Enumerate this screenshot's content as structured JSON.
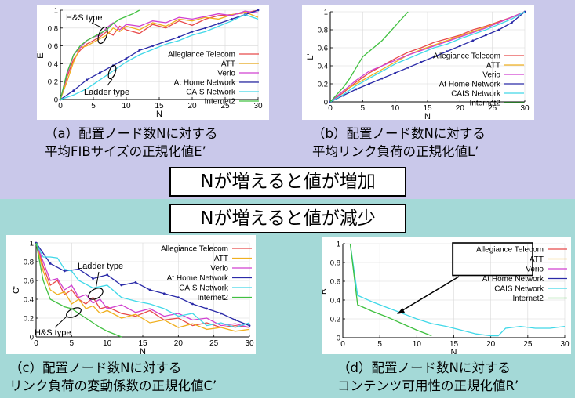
{
  "colors": {
    "background_top": "#c9c8ea",
    "background_bottom": "#a4d9d7",
    "series": {
      "Allegiance Telecom": "#e84a4a",
      "ATT": "#f0b020",
      "Verio": "#d040d0",
      "At Home Network": "#2a2aa8",
      "CAIS Network": "#40d8e8",
      "Internet2": "#40c040"
    }
  },
  "banners": {
    "increase": "Nが増えると値が増加",
    "decrease": "Nが増えると値が減少"
  },
  "captions": {
    "a": [
      "（a）配置ノード数Nに対する",
      "平均FIBサイズの正規化値E’"
    ],
    "b": [
      "（b）配置ノード数Nに対する",
      "平均リンク負荷の正規化値L’"
    ],
    "c": [
      "（c）配置ノード数Nに対する",
      "リンク負荷の変動係数の正規化値C’"
    ],
    "d": [
      "（d）配置ノード数Nに対する",
      "コンテンツ可用性の正規化値R’"
    ]
  },
  "chart_data": [
    {
      "id": "a",
      "type": "line",
      "xlabel": "N",
      "ylabel": "E'",
      "xlim": [
        0,
        30
      ],
      "ylim": [
        0,
        1
      ],
      "xticks": [
        0,
        5,
        10,
        15,
        20,
        25,
        30
      ],
      "yticks": [
        0,
        0.2,
        0.4,
        0.6,
        0.8,
        1
      ],
      "ytick_labels": [
        "0",
        "0.2",
        "0.4",
        "0.6",
        "0.8",
        "1"
      ],
      "legend": [
        "Allegiance Telecom",
        "ATT",
        "Verio",
        "At Home Network",
        "CAIS Network",
        "Internet2"
      ],
      "annotations": [
        "H&S type",
        "Ladder type"
      ],
      "series": [
        {
          "name": "Allegiance Telecom",
          "x": [
            0,
            1,
            2,
            3,
            4,
            5,
            6,
            7,
            8,
            9,
            10,
            12,
            14,
            16,
            18,
            20,
            22,
            24,
            26,
            28,
            30
          ],
          "y": [
            0,
            0.25,
            0.45,
            0.55,
            0.62,
            0.66,
            0.7,
            0.76,
            0.72,
            0.82,
            0.78,
            0.74,
            0.84,
            0.8,
            0.88,
            0.83,
            0.9,
            0.94,
            0.95,
            0.97,
            1
          ]
        },
        {
          "name": "ATT",
          "x": [
            0,
            1,
            2,
            3,
            4,
            5,
            6,
            7,
            8,
            9,
            10,
            12,
            14,
            16,
            18,
            20,
            22,
            24,
            26,
            28,
            30
          ],
          "y": [
            0,
            0.2,
            0.42,
            0.58,
            0.6,
            0.64,
            0.68,
            0.72,
            0.8,
            0.76,
            0.82,
            0.78,
            0.86,
            0.82,
            0.9,
            0.88,
            0.92,
            0.9,
            0.95,
            0.98,
            0.92
          ]
        },
        {
          "name": "Verio",
          "x": [
            0,
            1,
            2,
            3,
            4,
            5,
            6,
            7,
            8,
            9,
            10,
            12,
            14,
            16,
            18,
            20,
            22,
            24,
            26,
            28,
            30
          ],
          "y": [
            0,
            0.28,
            0.5,
            0.58,
            0.66,
            0.7,
            0.72,
            0.8,
            0.86,
            0.78,
            0.84,
            0.82,
            0.88,
            0.86,
            0.92,
            0.9,
            0.93,
            0.96,
            0.94,
            0.99,
            0.97
          ]
        },
        {
          "name": "At Home Network",
          "x": [
            0,
            2,
            4,
            6,
            8,
            10,
            12,
            14,
            16,
            18,
            20,
            22,
            24,
            26,
            28,
            30
          ],
          "y": [
            0,
            0.1,
            0.22,
            0.3,
            0.38,
            0.46,
            0.55,
            0.6,
            0.65,
            0.7,
            0.76,
            0.8,
            0.85,
            0.9,
            0.95,
            1
          ]
        },
        {
          "name": "CAIS Network",
          "x": [
            0,
            2,
            4,
            6,
            8,
            10,
            12,
            14,
            16,
            18,
            20,
            22,
            24,
            26,
            28,
            30
          ],
          "y": [
            0,
            0.05,
            0.12,
            0.22,
            0.32,
            0.42,
            0.5,
            0.56,
            0.62,
            0.66,
            0.72,
            0.76,
            0.82,
            0.88,
            0.95,
            0.9
          ]
        },
        {
          "name": "Internet2",
          "x": [
            0,
            1,
            2,
            3,
            4,
            5,
            6,
            7,
            8,
            9,
            10,
            11,
            12
          ],
          "y": [
            0,
            0.3,
            0.5,
            0.6,
            0.66,
            0.7,
            0.74,
            0.78,
            0.85,
            0.9,
            0.93,
            0.96,
            1
          ]
        }
      ]
    },
    {
      "id": "b",
      "type": "line",
      "xlabel": "N",
      "ylabel": "L'",
      "xlim": [
        0,
        30
      ],
      "ylim": [
        0,
        1
      ],
      "xticks": [
        0,
        5,
        10,
        15,
        20,
        25,
        30
      ],
      "yticks": [
        0,
        0.2,
        0.4,
        0.6,
        0.8,
        1
      ],
      "ytick_labels": [
        "0",
        "0.2",
        "0.4",
        "0.6",
        "0.8",
        "1"
      ],
      "legend": [
        "Allegiance Telecom",
        "ATT",
        "Verio",
        "At Home Network",
        "CAIS Network",
        "Internet2"
      ],
      "series": [
        {
          "name": "Allegiance Telecom",
          "x": [
            0,
            2,
            4,
            6,
            8,
            10,
            12,
            14,
            16,
            18,
            20,
            22,
            24,
            26,
            28,
            30
          ],
          "y": [
            0,
            0.1,
            0.22,
            0.32,
            0.4,
            0.48,
            0.55,
            0.6,
            0.66,
            0.7,
            0.74,
            0.8,
            0.84,
            0.89,
            0.94,
            1
          ]
        },
        {
          "name": "ATT",
          "x": [
            0,
            2,
            4,
            6,
            8,
            10,
            12,
            14,
            16,
            18,
            20,
            22,
            24,
            26,
            28,
            30
          ],
          "y": [
            0,
            0.12,
            0.2,
            0.28,
            0.36,
            0.44,
            0.52,
            0.58,
            0.63,
            0.68,
            0.73,
            0.78,
            0.83,
            0.88,
            0.94,
            1
          ]
        },
        {
          "name": "Verio",
          "x": [
            0,
            2,
            4,
            6,
            8,
            10,
            12,
            14,
            16,
            18,
            20,
            22,
            24,
            26,
            28,
            30
          ],
          "y": [
            0,
            0.12,
            0.24,
            0.34,
            0.4,
            0.46,
            0.52,
            0.57,
            0.62,
            0.67,
            0.72,
            0.77,
            0.82,
            0.88,
            0.94,
            1
          ]
        },
        {
          "name": "At Home Network",
          "x": [
            0,
            2,
            4,
            6,
            8,
            10,
            12,
            14,
            16,
            18,
            20,
            22,
            24,
            26,
            28,
            30
          ],
          "y": [
            0,
            0.07,
            0.14,
            0.2,
            0.26,
            0.32,
            0.38,
            0.44,
            0.5,
            0.56,
            0.62,
            0.68,
            0.74,
            0.8,
            0.88,
            1
          ]
        },
        {
          "name": "CAIS Network",
          "x": [
            0,
            2,
            4,
            6,
            8,
            10,
            12,
            14,
            16,
            18,
            20,
            22,
            24,
            26,
            28,
            30
          ],
          "y": [
            0,
            0.08,
            0.18,
            0.26,
            0.34,
            0.42,
            0.48,
            0.54,
            0.6,
            0.64,
            0.7,
            0.75,
            0.8,
            0.86,
            0.92,
            1
          ]
        },
        {
          "name": "Internet2",
          "x": [
            0,
            1,
            2,
            3,
            4,
            5,
            6,
            7,
            8,
            9,
            10,
            11,
            12
          ],
          "y": [
            0,
            0.08,
            0.16,
            0.26,
            0.38,
            0.5,
            0.56,
            0.62,
            0.68,
            0.76,
            0.84,
            0.92,
            1
          ]
        }
      ]
    },
    {
      "id": "c",
      "type": "line",
      "xlabel": "N",
      "ylabel": "C'",
      "xlim": [
        0,
        30
      ],
      "ylim": [
        0,
        1
      ],
      "xticks": [
        0,
        5,
        10,
        15,
        20,
        25,
        30
      ],
      "yticks": [
        0,
        0.2,
        0.4,
        0.6,
        0.8,
        1
      ],
      "ytick_labels": [
        "0",
        "0.2",
        "0.4",
        "0.6",
        "0.8",
        "1"
      ],
      "legend": [
        "Allegiance Telecom",
        "ATT",
        "Verio",
        "At Home Network",
        "CAIS Network",
        "Internet2"
      ],
      "annotations": [
        "Ladder type",
        "H&S type"
      ],
      "series": [
        {
          "name": "Allegiance Telecom",
          "x": [
            0,
            1,
            2,
            3,
            4,
            5,
            6,
            7,
            8,
            9,
            10,
            12,
            14,
            16,
            18,
            20,
            22,
            24,
            26,
            28,
            30
          ],
          "y": [
            1,
            0.75,
            0.55,
            0.6,
            0.45,
            0.5,
            0.4,
            0.35,
            0.42,
            0.3,
            0.32,
            0.25,
            0.22,
            0.28,
            0.18,
            0.2,
            0.12,
            0.15,
            0.1,
            0.12,
            0.1
          ]
        },
        {
          "name": "ATT",
          "x": [
            0,
            1,
            2,
            3,
            4,
            5,
            6,
            7,
            8,
            9,
            10,
            12,
            14,
            16,
            18,
            20,
            22,
            24,
            26,
            28,
            30
          ],
          "y": [
            1,
            0.7,
            0.5,
            0.45,
            0.48,
            0.35,
            0.4,
            0.3,
            0.33,
            0.25,
            0.28,
            0.2,
            0.24,
            0.15,
            0.18,
            0.1,
            0.14,
            0.08,
            0.1,
            0.06,
            0.08
          ]
        },
        {
          "name": "Verio",
          "x": [
            0,
            1,
            2,
            3,
            4,
            5,
            6,
            7,
            8,
            9,
            10,
            12,
            14,
            16,
            18,
            20,
            22,
            24,
            26,
            28,
            30
          ],
          "y": [
            1,
            0.8,
            0.6,
            0.62,
            0.5,
            0.55,
            0.42,
            0.45,
            0.36,
            0.4,
            0.3,
            0.34,
            0.26,
            0.3,
            0.22,
            0.25,
            0.18,
            0.2,
            0.12,
            0.14,
            0.1
          ]
        },
        {
          "name": "At Home Network",
          "x": [
            0,
            2,
            4,
            6,
            8,
            10,
            12,
            14,
            16,
            18,
            20,
            22,
            24,
            26,
            28,
            30
          ],
          "y": [
            1,
            0.78,
            0.7,
            0.72,
            0.62,
            0.66,
            0.55,
            0.58,
            0.5,
            0.46,
            0.42,
            0.35,
            0.3,
            0.25,
            0.18,
            0.12
          ]
        },
        {
          "name": "CAIS Network",
          "x": [
            0,
            1,
            2,
            3,
            4,
            5,
            6,
            8,
            10,
            12,
            14,
            16,
            18,
            20,
            22,
            24,
            26,
            28,
            30
          ],
          "y": [
            1,
            0.85,
            0.85,
            0.84,
            0.72,
            0.7,
            0.6,
            0.52,
            0.55,
            0.42,
            0.38,
            0.35,
            0.3,
            0.22,
            0.25,
            0.12,
            0.15,
            0.1,
            0.15
          ]
        },
        {
          "name": "Internet2",
          "x": [
            0,
            1,
            2,
            3,
            4,
            5,
            6,
            7,
            8,
            9,
            10,
            11,
            12
          ],
          "y": [
            1,
            0.6,
            0.4,
            0.36,
            0.32,
            0.3,
            0.25,
            0.2,
            0.15,
            0.1,
            0.06,
            0.03,
            0
          ]
        }
      ]
    },
    {
      "id": "d",
      "type": "line",
      "xlabel": "N",
      "ylabel": "R'",
      "xlim": [
        0,
        30
      ],
      "ylim": [
        0,
        1
      ],
      "xticks": [
        0,
        5,
        10,
        15,
        20,
        25,
        30
      ],
      "yticks": [
        0,
        0.2,
        0.4,
        0.6,
        0.8,
        1
      ],
      "ytick_labels": [
        "0",
        "0.2",
        "0.4",
        "0.6",
        "0.8",
        "1"
      ],
      "legend": [
        "Allegiance Telecom",
        "ATT",
        "Verio",
        "At Home Network",
        "CAIS Network",
        "Internet2"
      ],
      "series": [
        {
          "name": "CAIS Network",
          "x": [
            1,
            2,
            4,
            6,
            8,
            10,
            12,
            14,
            16,
            18,
            20,
            21,
            22,
            24,
            26,
            28,
            30
          ],
          "y": [
            1,
            0.45,
            0.38,
            0.32,
            0.26,
            0.2,
            0.15,
            0.12,
            0.08,
            0.04,
            0.02,
            0.02,
            0.1,
            0.12,
            0.1,
            0.1,
            0.12
          ]
        },
        {
          "name": "Internet2",
          "x": [
            1,
            2,
            4,
            6,
            8,
            10,
            12
          ],
          "y": [
            1,
            0.35,
            0.28,
            0.22,
            0.15,
            0.08,
            0.02
          ]
        }
      ]
    }
  ]
}
